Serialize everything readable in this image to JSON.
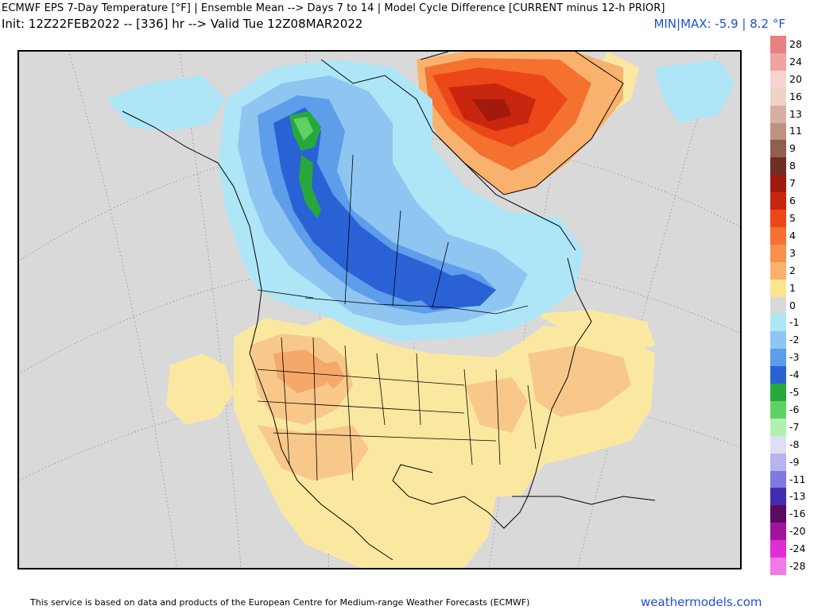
{
  "header": {
    "title": "ECMWF EPS 7-Day Temperature [°F] | Ensemble Mean --> Days 7 to 14 | Model Cycle Difference [CURRENT minus 12-h PRIOR]",
    "init_line": "Init: 12Z22FEB2022 -- [336] hr --> Valid Tue 12Z08MAR2022",
    "minmax": "MIN|MAX: -5.9 | 8.2 °F"
  },
  "colorbar": {
    "levels": [
      {
        "label": "28",
        "color": "#e8817f"
      },
      {
        "label": "24",
        "color": "#f0a3a0"
      },
      {
        "label": "20",
        "color": "#f7d3d2"
      },
      {
        "label": "16",
        "color": "#efd2c8"
      },
      {
        "label": "13",
        "color": "#d8b0a3"
      },
      {
        "label": "11",
        "color": "#c09181"
      },
      {
        "label": "9",
        "color": "#8f5f50"
      },
      {
        "label": "8",
        "color": "#6e2e22"
      },
      {
        "label": "7",
        "color": "#a11a0e"
      },
      {
        "label": "6",
        "color": "#c8260e"
      },
      {
        "label": "5",
        "color": "#eb4718"
      },
      {
        "label": "4",
        "color": "#f47130"
      },
      {
        "label": "3",
        "color": "#f7914d"
      },
      {
        "label": "2",
        "color": "#f8b26e"
      },
      {
        "label": "1",
        "color": "#fbe48f"
      },
      {
        "label": "0",
        "color": "#d9d9d9"
      },
      {
        "label": "-1",
        "color": "#aee6f7"
      },
      {
        "label": "-2",
        "color": "#8fc5f1"
      },
      {
        "label": "-3",
        "color": "#5d9de9"
      },
      {
        "label": "-4",
        "color": "#2a62d6"
      },
      {
        "label": "-5",
        "color": "#27a83a"
      },
      {
        "label": "-6",
        "color": "#5fd162"
      },
      {
        "label": "-7",
        "color": "#b3efb0"
      },
      {
        "label": "-8",
        "color": "#dedff4"
      },
      {
        "label": "-9",
        "color": "#b6b4ee"
      },
      {
        "label": "-11",
        "color": "#7f79df"
      },
      {
        "label": "-13",
        "color": "#3f2fb0"
      },
      {
        "label": "-16",
        "color": "#5c0b63"
      },
      {
        "label": "-20",
        "color": "#a0159e"
      },
      {
        "label": "-24",
        "color": "#e12dd6"
      },
      {
        "label": "-28",
        "color": "#f07ae8"
      }
    ]
  },
  "map": {
    "region": "North America",
    "background_color": "#d9d9d9"
  },
  "footer": {
    "credit": "This service is based on data and products of the European Centre for Medium-range Weather Forecasts (ECMWF)",
    "site": "weathermodels.com"
  }
}
